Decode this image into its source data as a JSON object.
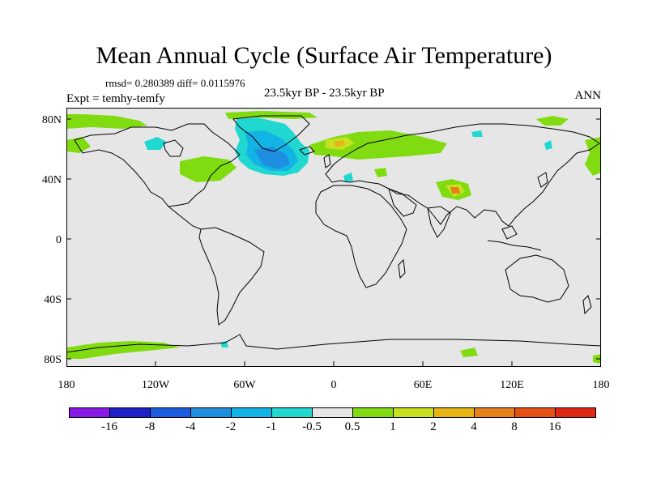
{
  "title": "Mean Annual Cycle (Surface Air Temperature)",
  "stats": "rmsd= 0.280389 diff= 0.0115976",
  "experiment": "Expt = temhy-temfy",
  "period": "23.5kyr BP - 23.5kyr BP",
  "season": "ANN",
  "lat_labels": [
    "80N",
    "40N",
    "0",
    "40S",
    "80S"
  ],
  "lon_labels": [
    "180",
    "120W",
    "60W",
    "0",
    "60E",
    "120E",
    "180"
  ],
  "colorbar": {
    "labels": [
      "-16",
      "-8",
      "-4",
      "-2",
      "-1",
      "-0.5",
      "0.5",
      "1",
      "2",
      "4",
      "8",
      "16"
    ],
    "colors": [
      "#8a1ae6",
      "#2020c8",
      "#1c5ce0",
      "#1e8ee0",
      "#12b4e6",
      "#20d8d0",
      "#e6e6e6",
      "#80dc10",
      "#c8e020",
      "#e6b414",
      "#e68018",
      "#e65014",
      "#e02814"
    ]
  },
  "map": {
    "background_color": "#e6e6e6",
    "coastline_color": "#000000"
  }
}
